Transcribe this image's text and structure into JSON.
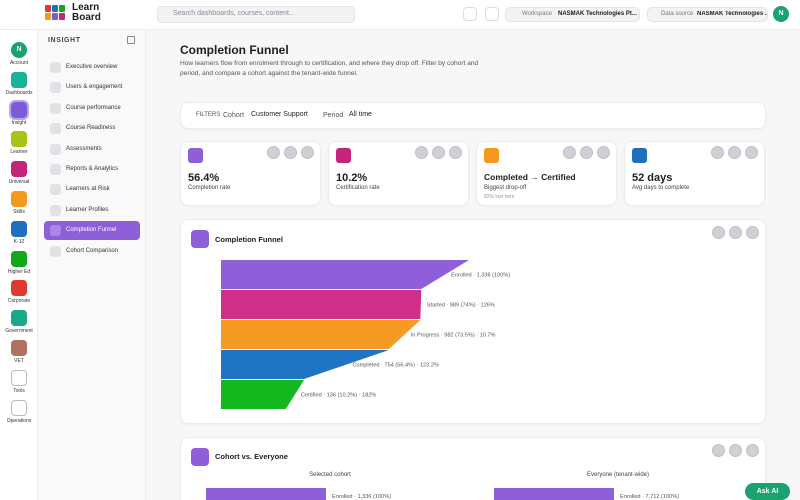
{
  "header": {
    "logo": [
      "Learn",
      "Board"
    ],
    "search_placeholder": "Search dashboards, courses, content...",
    "workspace_label": "Workspace",
    "workspace": "NASMAK Technologies Pt...",
    "datasource_label": "Data source",
    "datasource": "NASMAK Technologies ...",
    "avatar": "N"
  },
  "rail": {
    "active": 2,
    "account_avatar": "N",
    "items": [
      {
        "label": "Account",
        "color": "#1aa36f"
      },
      {
        "label": "Dashboards",
        "color": "#1ab394"
      },
      {
        "label": "Insight",
        "color": "#7c5cd6"
      },
      {
        "label": "Learner",
        "color": "#a8c416"
      },
      {
        "label": "Universal",
        "color": "#c2257a"
      },
      {
        "label": "Skills",
        "color": "#f39a1e"
      },
      {
        "label": "K-12",
        "color": "#1f6fbf"
      },
      {
        "label": "Higher Ed",
        "color": "#14a71a"
      },
      {
        "label": "Corporate",
        "color": "#e03a2f"
      },
      {
        "label": "Government",
        "color": "#19a88a"
      },
      {
        "label": "VET",
        "color": "#b07060"
      },
      {
        "label": "Tools",
        "color": null
      },
      {
        "label": "Operations",
        "color": null
      }
    ]
  },
  "nav": {
    "title": "INSIGHT",
    "active": 8,
    "items": [
      "Executive overview",
      "Users & engagement",
      "Course performance",
      "Course Readiness",
      "Assessments",
      "Reports & Analytics",
      "Learners at Risk",
      "Learner Profiles",
      "Completion Funnel",
      "Cohort Comparison"
    ]
  },
  "page": {
    "title": "Completion Funnel",
    "description": "How learners flow from enrolment through to certification, and where they drop off. Filter by cohort and period, and compare a cohort against the tenant-wide funnel."
  },
  "filters": {
    "label": "FILTERS",
    "cohort_label": "Cohort",
    "cohort": "Customer Support",
    "period_label": "Period",
    "period": "All time"
  },
  "kpis": [
    {
      "value": "56.4%",
      "label": "Completion rate",
      "color": "#8e5fd8"
    },
    {
      "value": "10.2%",
      "label": "Certification rate",
      "color": "#c2257a"
    },
    {
      "value": "Completed → Certified",
      "label": "Biggest drop-off",
      "note": "82% lost here",
      "color": "#f39a1e"
    },
    {
      "value": "52 days",
      "label": "Avg days to complete",
      "color": "#1f6fbf"
    }
  ],
  "funnel": {
    "title": "Completion Funnel",
    "stages": [
      {
        "label": "Enrolled · 1,336 (100%)",
        "value": 1336,
        "color": "#8e5fd8"
      },
      {
        "label": "Started · 989 (74%) · 126%",
        "value": 989,
        "color": "#cf2f87"
      },
      {
        "label": "In Progress · 982 (73.5%) · 10.7%",
        "value": 982,
        "color": "#f59a23"
      },
      {
        "label": "Completed · 754 (56.4%) · 123.2%",
        "value": 754,
        "color": "#1f74c4"
      },
      {
        "label": "Certified · 136 (10.2%) · 182%",
        "value": 136,
        "color": "#13b81f"
      }
    ]
  },
  "cohort": {
    "title": "Cohort vs. Everyone",
    "panels": [
      {
        "title": "Selected cohort",
        "label": "Enrolled · 1,336 (100%)",
        "value": 1336,
        "color": "#8e5fd8"
      },
      {
        "title": "Everyone (tenant-wide)",
        "label": "Enrolled · 7,712 (100%)",
        "value": 7712,
        "color": "#8e5fd8"
      }
    ]
  },
  "ask_ai": "Ask AI"
}
